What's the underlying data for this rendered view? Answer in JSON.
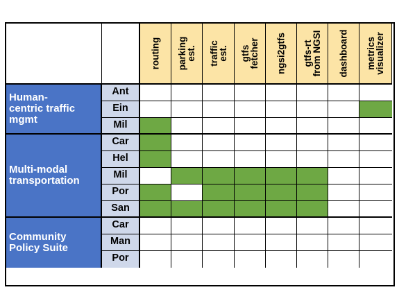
{
  "columns": [
    "routing",
    "parking\nest.",
    "traffic\nest.",
    "gtfs\nfetcher",
    "ngsi2gtfs",
    "gtfs-rt\nfrom NGSI",
    "dashboard",
    "metrics\nvisualizer"
  ],
  "groups": [
    {
      "label": "Human-\ncentric traffic\nmgmt",
      "rows": [
        "Ant",
        "Ein",
        "Mil"
      ]
    },
    {
      "label": "Multi-modal\ntransportation",
      "rows": [
        "Car",
        "Hel",
        "Mil",
        "Por",
        "San"
      ]
    },
    {
      "label": "Community\nPolicy Suite",
      "rows": [
        "Car",
        "Man",
        "Por"
      ]
    }
  ],
  "matrix": [
    [
      0,
      0,
      0,
      0,
      0,
      0,
      0,
      0
    ],
    [
      0,
      0,
      0,
      0,
      0,
      0,
      0,
      1
    ],
    [
      1,
      0,
      0,
      0,
      0,
      0,
      0,
      0
    ],
    [
      1,
      0,
      0,
      0,
      0,
      0,
      0,
      0
    ],
    [
      1,
      0,
      0,
      0,
      0,
      0,
      0,
      0
    ],
    [
      0,
      1,
      1,
      1,
      1,
      1,
      0,
      0
    ],
    [
      1,
      0,
      1,
      1,
      1,
      1,
      0,
      0
    ],
    [
      1,
      1,
      1,
      1,
      1,
      1,
      0,
      0
    ],
    [
      0,
      0,
      0,
      0,
      0,
      0,
      0,
      0
    ],
    [
      0,
      0,
      0,
      0,
      0,
      0,
      0,
      0
    ],
    [
      0,
      0,
      0,
      0,
      0,
      0,
      0,
      0
    ]
  ],
  "colors": {
    "header": "#fce4a6",
    "group": "#4a74c6",
    "city": "#cfd8ea",
    "filled": "#6ea844"
  }
}
